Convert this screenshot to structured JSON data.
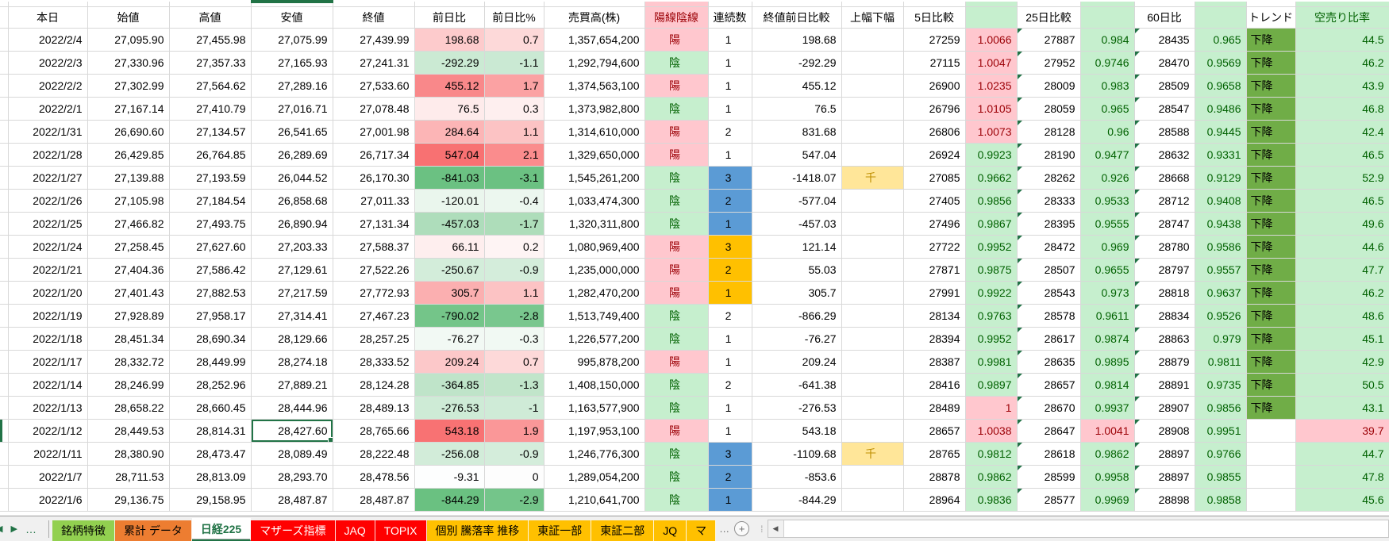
{
  "columns": [
    {
      "key": "_strip",
      "label": ""
    },
    {
      "key": "date",
      "label": "本日"
    },
    {
      "key": "open",
      "label": "始値"
    },
    {
      "key": "high",
      "label": "高値"
    },
    {
      "key": "low",
      "label": "安値"
    },
    {
      "key": "close",
      "label": "終値"
    },
    {
      "key": "chg",
      "label": "前日比"
    },
    {
      "key": "chgPct",
      "label": "前日比%"
    },
    {
      "key": "vol",
      "label": "売買高(株)"
    },
    {
      "key": "candle",
      "label": "陽線陰線"
    },
    {
      "key": "streak",
      "label": "連続数"
    },
    {
      "key": "closeCmp",
      "label": "終値前日比較"
    },
    {
      "key": "flag",
      "label": "上幅下幅"
    },
    {
      "key": "d5",
      "label": "5日比較"
    },
    {
      "key": "d5r",
      "label": ""
    },
    {
      "key": "d25",
      "label": "25日比較"
    },
    {
      "key": "d25r",
      "label": ""
    },
    {
      "key": "d60",
      "label": "60日比"
    },
    {
      "key": "d60r",
      "label": ""
    },
    {
      "key": "trend",
      "label": "トレンド"
    },
    {
      "key": "short",
      "label": "空売り比率"
    }
  ],
  "selection": {
    "row": 17,
    "column": "low"
  },
  "rows": [
    {
      "date": "2022/2/4",
      "open": "27,095.90",
      "high": "27,455.98",
      "low": "27,075.99",
      "close": "27,439.99",
      "chg": "198.68",
      "chgPct": "0.7",
      "vol": "1,357,654,200",
      "candle": "陽",
      "streak": "1",
      "streakTone": "none",
      "closeCmp": "198.68",
      "flag": "",
      "d5": "27259",
      "d5r": "1.0066",
      "d5rTone": "up",
      "d25": "27887",
      "d25r": "0.984",
      "d25rTone": "down",
      "d60": "28435",
      "d60r": "0.965",
      "d60rTone": "down",
      "trend": "下降",
      "short": "44.5",
      "shortTone": "ok"
    },
    {
      "date": "2022/2/3",
      "open": "27,330.96",
      "high": "27,357.33",
      "low": "27,165.93",
      "close": "27,241.31",
      "chg": "-292.29",
      "chgPct": "-1.1",
      "vol": "1,292,794,600",
      "candle": "陰",
      "streak": "1",
      "streakTone": "none",
      "closeCmp": "-292.29",
      "flag": "",
      "d5": "27115",
      "d5r": "1.0047",
      "d5rTone": "up",
      "d25": "27952",
      "d25r": "0.9746",
      "d25rTone": "down",
      "d60": "28470",
      "d60r": "0.9569",
      "d60rTone": "down",
      "trend": "下降",
      "short": "46.2",
      "shortTone": "ok"
    },
    {
      "date": "2022/2/2",
      "open": "27,302.99",
      "high": "27,564.62",
      "low": "27,289.16",
      "close": "27,533.60",
      "chg": "455.12",
      "chgPct": "1.7",
      "vol": "1,374,563,100",
      "candle": "陽",
      "streak": "1",
      "streakTone": "none",
      "closeCmp": "455.12",
      "flag": "",
      "d5": "26900",
      "d5r": "1.0235",
      "d5rTone": "up",
      "d25": "28009",
      "d25r": "0.983",
      "d25rTone": "down",
      "d60": "28509",
      "d60r": "0.9658",
      "d60rTone": "down",
      "trend": "下降",
      "short": "43.9",
      "shortTone": "ok"
    },
    {
      "date": "2022/2/1",
      "open": "27,167.14",
      "high": "27,410.79",
      "low": "27,016.71",
      "close": "27,078.48",
      "chg": "76.5",
      "chgPct": "0.3",
      "vol": "1,373,982,800",
      "candle": "陰",
      "streak": "1",
      "streakTone": "none",
      "closeCmp": "76.5",
      "flag": "",
      "d5": "26796",
      "d5r": "1.0105",
      "d5rTone": "up",
      "d25": "28059",
      "d25r": "0.965",
      "d25rTone": "down",
      "d60": "28547",
      "d60r": "0.9486",
      "d60rTone": "down",
      "trend": "下降",
      "short": "46.8",
      "shortTone": "ok"
    },
    {
      "date": "2022/1/31",
      "open": "26,690.60",
      "high": "27,134.57",
      "low": "26,541.65",
      "close": "27,001.98",
      "chg": "284.64",
      "chgPct": "1.1",
      "vol": "1,314,610,000",
      "candle": "陽",
      "streak": "2",
      "streakTone": "none",
      "closeCmp": "831.68",
      "flag": "",
      "d5": "26806",
      "d5r": "1.0073",
      "d5rTone": "up",
      "d25": "28128",
      "d25r": "0.96",
      "d25rTone": "down",
      "d60": "28588",
      "d60r": "0.9445",
      "d60rTone": "down",
      "trend": "下降",
      "short": "42.4",
      "shortTone": "ok"
    },
    {
      "date": "2022/1/28",
      "open": "26,429.85",
      "high": "26,764.85",
      "low": "26,289.69",
      "close": "26,717.34",
      "chg": "547.04",
      "chgPct": "2.1",
      "vol": "1,329,650,000",
      "candle": "陽",
      "streak": "1",
      "streakTone": "none",
      "closeCmp": "547.04",
      "flag": "",
      "d5": "26924",
      "d5r": "0.9923",
      "d5rTone": "down",
      "d25": "28190",
      "d25r": "0.9477",
      "d25rTone": "down",
      "d60": "28632",
      "d60r": "0.9331",
      "d60rTone": "down",
      "trend": "下降",
      "short": "46.5",
      "shortTone": "ok"
    },
    {
      "date": "2022/1/27",
      "open": "27,139.88",
      "high": "27,193.59",
      "low": "26,044.52",
      "close": "26,170.30",
      "chg": "-841.03",
      "chgPct": "-3.1",
      "vol": "1,545,261,200",
      "candle": "陰",
      "streak": "3",
      "streakTone": "blue",
      "closeCmp": "-1418.07",
      "flag": "千",
      "d5": "27085",
      "d5r": "0.9662",
      "d5rTone": "down",
      "d25": "28262",
      "d25r": "0.926",
      "d25rTone": "down",
      "d60": "28668",
      "d60r": "0.9129",
      "d60rTone": "down",
      "trend": "下降",
      "short": "52.9",
      "shortTone": "ok"
    },
    {
      "date": "2022/1/26",
      "open": "27,105.98",
      "high": "27,184.54",
      "low": "26,858.68",
      "close": "27,011.33",
      "chg": "-120.01",
      "chgPct": "-0.4",
      "vol": "1,033,474,300",
      "candle": "陰",
      "streak": "2",
      "streakTone": "blue",
      "closeCmp": "-577.04",
      "flag": "",
      "d5": "27405",
      "d5r": "0.9856",
      "d5rTone": "down",
      "d25": "28333",
      "d25r": "0.9533",
      "d25rTone": "down",
      "d60": "28712",
      "d60r": "0.9408",
      "d60rTone": "down",
      "trend": "下降",
      "short": "46.5",
      "shortTone": "ok"
    },
    {
      "date": "2022/1/25",
      "open": "27,466.82",
      "high": "27,493.75",
      "low": "26,890.94",
      "close": "27,131.34",
      "chg": "-457.03",
      "chgPct": "-1.7",
      "vol": "1,320,311,800",
      "candle": "陰",
      "streak": "1",
      "streakTone": "blue",
      "closeCmp": "-457.03",
      "flag": "",
      "d5": "27496",
      "d5r": "0.9867",
      "d5rTone": "down",
      "d25": "28395",
      "d25r": "0.9555",
      "d25rTone": "down",
      "d60": "28747",
      "d60r": "0.9438",
      "d60rTone": "down",
      "trend": "下降",
      "short": "49.6",
      "shortTone": "ok"
    },
    {
      "date": "2022/1/24",
      "open": "27,258.45",
      "high": "27,627.60",
      "low": "27,203.33",
      "close": "27,588.37",
      "chg": "66.11",
      "chgPct": "0.2",
      "vol": "1,080,969,400",
      "candle": "陽",
      "streak": "3",
      "streakTone": "orange",
      "closeCmp": "121.14",
      "flag": "",
      "d5": "27722",
      "d5r": "0.9952",
      "d5rTone": "down",
      "d25": "28472",
      "d25r": "0.969",
      "d25rTone": "down",
      "d60": "28780",
      "d60r": "0.9586",
      "d60rTone": "down",
      "trend": "下降",
      "short": "44.6",
      "shortTone": "ok"
    },
    {
      "date": "2022/1/21",
      "open": "27,404.36",
      "high": "27,586.42",
      "low": "27,129.61",
      "close": "27,522.26",
      "chg": "-250.67",
      "chgPct": "-0.9",
      "vol": "1,235,000,000",
      "candle": "陽",
      "streak": "2",
      "streakTone": "orange",
      "closeCmp": "55.03",
      "flag": "",
      "d5": "27871",
      "d5r": "0.9875",
      "d5rTone": "down",
      "d25": "28507",
      "d25r": "0.9655",
      "d25rTone": "down",
      "d60": "28797",
      "d60r": "0.9557",
      "d60rTone": "down",
      "trend": "下降",
      "short": "47.7",
      "shortTone": "ok"
    },
    {
      "date": "2022/1/20",
      "open": "27,401.43",
      "high": "27,882.53",
      "low": "27,217.59",
      "close": "27,772.93",
      "chg": "305.7",
      "chgPct": "1.1",
      "vol": "1,282,470,200",
      "candle": "陽",
      "streak": "1",
      "streakTone": "orange",
      "closeCmp": "305.7",
      "flag": "",
      "d5": "27991",
      "d5r": "0.9922",
      "d5rTone": "down",
      "d25": "28543",
      "d25r": "0.973",
      "d25rTone": "down",
      "d60": "28818",
      "d60r": "0.9637",
      "d60rTone": "down",
      "trend": "下降",
      "short": "46.2",
      "shortTone": "ok"
    },
    {
      "date": "2022/1/19",
      "open": "27,928.89",
      "high": "27,958.17",
      "low": "27,314.41",
      "close": "27,467.23",
      "chg": "-790.02",
      "chgPct": "-2.8",
      "vol": "1,513,749,400",
      "candle": "陰",
      "streak": "2",
      "streakTone": "none",
      "closeCmp": "-866.29",
      "flag": "",
      "d5": "28134",
      "d5r": "0.9763",
      "d5rTone": "down",
      "d25": "28578",
      "d25r": "0.9611",
      "d25rTone": "down",
      "d60": "28834",
      "d60r": "0.9526",
      "d60rTone": "down",
      "trend": "下降",
      "short": "48.6",
      "shortTone": "ok"
    },
    {
      "date": "2022/1/18",
      "open": "28,451.34",
      "high": "28,690.34",
      "low": "28,129.66",
      "close": "28,257.25",
      "chg": "-76.27",
      "chgPct": "-0.3",
      "vol": "1,226,577,200",
      "candle": "陰",
      "streak": "1",
      "streakTone": "none",
      "closeCmp": "-76.27",
      "flag": "",
      "d5": "28394",
      "d5r": "0.9952",
      "d5rTone": "down",
      "d25": "28617",
      "d25r": "0.9874",
      "d25rTone": "down",
      "d60": "28863",
      "d60r": "0.979",
      "d60rTone": "down",
      "trend": "下降",
      "short": "45.1",
      "shortTone": "ok"
    },
    {
      "date": "2022/1/17",
      "open": "28,332.72",
      "high": "28,449.99",
      "low": "28,274.18",
      "close": "28,333.52",
      "chg": "209.24",
      "chgPct": "0.7",
      "vol": "995,878,200",
      "candle": "陽",
      "streak": "1",
      "streakTone": "none",
      "closeCmp": "209.24",
      "flag": "",
      "d5": "28387",
      "d5r": "0.9981",
      "d5rTone": "down",
      "d25": "28635",
      "d25r": "0.9895",
      "d25rTone": "down",
      "d60": "28879",
      "d60r": "0.9811",
      "d60rTone": "down",
      "trend": "下降",
      "short": "42.9",
      "shortTone": "ok"
    },
    {
      "date": "2022/1/14",
      "open": "28,246.99",
      "high": "28,252.96",
      "low": "27,889.21",
      "close": "28,124.28",
      "chg": "-364.85",
      "chgPct": "-1.3",
      "vol": "1,408,150,000",
      "candle": "陰",
      "streak": "2",
      "streakTone": "none",
      "closeCmp": "-641.38",
      "flag": "",
      "d5": "28416",
      "d5r": "0.9897",
      "d5rTone": "down",
      "d25": "28657",
      "d25r": "0.9814",
      "d25rTone": "down",
      "d60": "28891",
      "d60r": "0.9735",
      "d60rTone": "down",
      "trend": "下降",
      "short": "50.5",
      "shortTone": "ok"
    },
    {
      "date": "2022/1/13",
      "open": "28,658.22",
      "high": "28,660.45",
      "low": "28,444.96",
      "close": "28,489.13",
      "chg": "-276.53",
      "chgPct": "-1",
      "vol": "1,163,577,900",
      "candle": "陰",
      "streak": "1",
      "streakTone": "none",
      "closeCmp": "-276.53",
      "flag": "",
      "d5": "28489",
      "d5r": "1",
      "d5rTone": "up",
      "d25": "28670",
      "d25r": "0.9937",
      "d25rTone": "down",
      "d60": "28907",
      "d60r": "0.9856",
      "d60rTone": "down",
      "trend": "下降",
      "short": "43.1",
      "shortTone": "ok"
    },
    {
      "date": "2022/1/12",
      "open": "28,449.53",
      "high": "28,814.31",
      "low": "28,427.60",
      "close": "28,765.66",
      "chg": "543.18",
      "chgPct": "1.9",
      "vol": "1,197,953,100",
      "candle": "陽",
      "streak": "1",
      "streakTone": "none",
      "closeCmp": "543.18",
      "flag": "",
      "d5": "28657",
      "d5r": "1.0038",
      "d5rTone": "up",
      "d25": "28647",
      "d25r": "1.0041",
      "d25rTone": "up",
      "d60": "28908",
      "d60r": "0.9951",
      "d60rTone": "down",
      "trend": "",
      "short": "39.7",
      "shortTone": "warn"
    },
    {
      "date": "2022/1/11",
      "open": "28,380.90",
      "high": "28,473.47",
      "low": "28,089.49",
      "close": "28,222.48",
      "chg": "-256.08",
      "chgPct": "-0.9",
      "vol": "1,246,776,300",
      "candle": "陰",
      "streak": "3",
      "streakTone": "blue",
      "closeCmp": "-1109.68",
      "flag": "千",
      "d5": "28765",
      "d5r": "0.9812",
      "d5rTone": "down",
      "d25": "28618",
      "d25r": "0.9862",
      "d25rTone": "down",
      "d60": "28897",
      "d60r": "0.9766",
      "d60rTone": "down",
      "trend": "",
      "short": "44.7",
      "shortTone": "ok"
    },
    {
      "date": "2022/1/7",
      "open": "28,711.53",
      "high": "28,813.09",
      "low": "28,293.70",
      "close": "28,478.56",
      "chg": "-9.31",
      "chgPct": "0",
      "vol": "1,289,054,200",
      "candle": "陰",
      "streak": "2",
      "streakTone": "blue",
      "closeCmp": "-853.6",
      "flag": "",
      "d5": "28878",
      "d5r": "0.9862",
      "d5rTone": "down",
      "d25": "28599",
      "d25r": "0.9958",
      "d25rTone": "down",
      "d60": "28897",
      "d60r": "0.9855",
      "d60rTone": "down",
      "trend": "",
      "short": "47.8",
      "shortTone": "ok"
    },
    {
      "date": "2022/1/6",
      "open": "29,136.75",
      "high": "29,158.95",
      "low": "28,487.87",
      "close": "28,487.87",
      "chg": "-844.29",
      "chgPct": "-2.9",
      "vol": "1,210,641,700",
      "candle": "陰",
      "streak": "1",
      "streakTone": "blue",
      "closeCmp": "-844.29",
      "flag": "",
      "d5": "28964",
      "d5r": "0.9836",
      "d5rTone": "down",
      "d25": "28577",
      "d25r": "0.9969",
      "d25rTone": "down",
      "d60": "28898",
      "d60r": "0.9858",
      "d60rTone": "down",
      "trend": "",
      "short": "45.6",
      "shortTone": "ok"
    }
  ],
  "sheet_bar": {
    "nav_left": "◀",
    "nav_right": "▶",
    "overflow_left": "…",
    "overflow_right": "…",
    "add_label": "+",
    "grip": "⁞",
    "scroll_left_arrow": "◀",
    "tabs": [
      {
        "label": "銘柄特徴",
        "color": "#92D050",
        "text": "#000000",
        "active": false
      },
      {
        "label": "累計 データ",
        "color": "#ED7D31",
        "text": "#000000",
        "active": false
      },
      {
        "label": "日経225",
        "color": "#FFFFFF",
        "text": "#217346",
        "active": true
      },
      {
        "label": "マザーズ指標",
        "color": "#FF0000",
        "text": "#FFFFFF",
        "active": false
      },
      {
        "label": "JAQ",
        "color": "#FF0000",
        "text": "#FFFFFF",
        "active": false
      },
      {
        "label": "TOPIX",
        "color": "#FF0000",
        "text": "#FFFFFF",
        "active": false
      },
      {
        "label": "個別 騰落率 推移",
        "color": "#FFC000",
        "text": "#000000",
        "active": false
      },
      {
        "label": "東証一部",
        "color": "#FFC000",
        "text": "#000000",
        "active": false
      },
      {
        "label": "東証二部",
        "color": "#FFC000",
        "text": "#000000",
        "active": false
      },
      {
        "label": "JQ",
        "color": "#FFC000",
        "text": "#000000",
        "active": false
      },
      {
        "label": "マ",
        "color": "#FFC000",
        "text": "#000000",
        "active": false
      }
    ]
  },
  "colors": {
    "accent": "#217346",
    "pink": "#FFC7CE",
    "red_text": "#9C0006",
    "green": "#C6EFCE",
    "green_text": "#006100",
    "blue": "#5B9BD5",
    "orange": "#FFC000",
    "yellow": "#FFE699",
    "brown_text": "#BF8F00",
    "trend_green": "#70AD47",
    "scale_red": "#F8696B",
    "scale_green": "#63BE7B",
    "grid_line": "#D8D8D8",
    "tab_bar_bg": "#F0F0F0"
  }
}
